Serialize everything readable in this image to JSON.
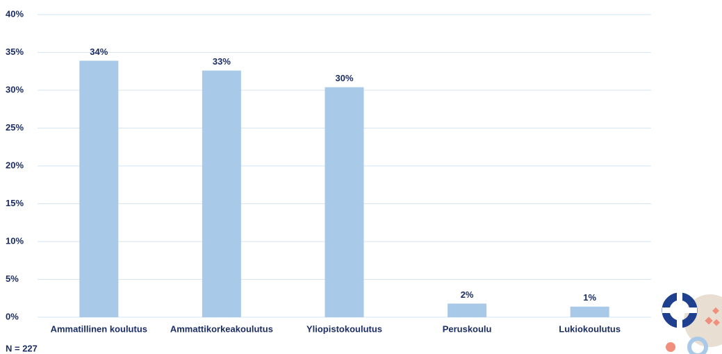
{
  "chart_data": {
    "type": "bar",
    "categories": [
      "Ammatillinen koulutus",
      "Ammattikorkeakoulutus",
      "Yliopistokoulutus",
      "Peruskoulu",
      "Lukiokoulutus"
    ],
    "values": [
      33.9,
      32.6,
      30.4,
      1.8,
      1.4
    ],
    "value_labels": [
      "34%",
      "33%",
      "30%",
      "2%",
      "1%"
    ],
    "color": "#a9c9e8",
    "ylim": [
      0,
      40
    ],
    "yticks": [
      {
        "value": 0,
        "label": "0%"
      },
      {
        "value": 5,
        "label": "5%"
      },
      {
        "value": 10,
        "label": "10%"
      },
      {
        "value": 15,
        "label": "15%"
      },
      {
        "value": 20,
        "label": "20%"
      },
      {
        "value": 25,
        "label": "25%"
      },
      {
        "value": 30,
        "label": "30%"
      },
      {
        "value": 35,
        "label": "35%"
      },
      {
        "value": 40,
        "label": "40%"
      }
    ],
    "grid": true,
    "note": "N = 227"
  }
}
